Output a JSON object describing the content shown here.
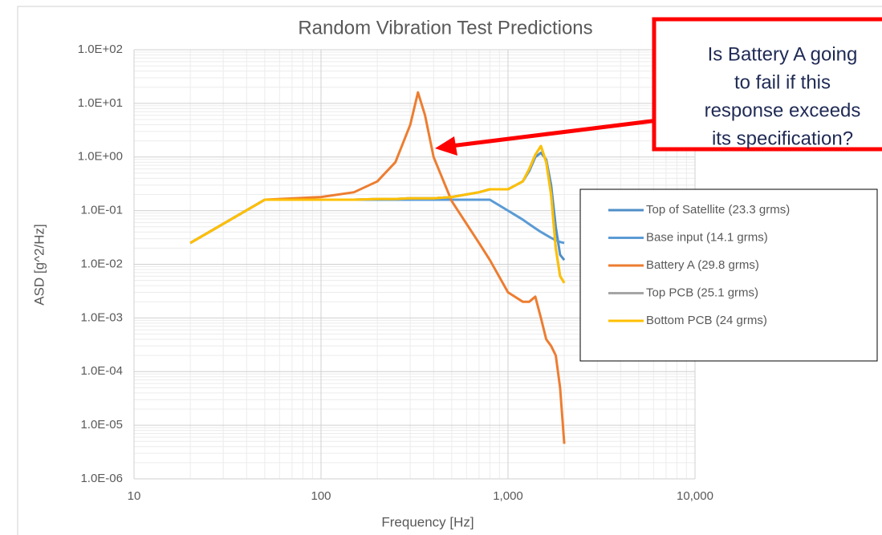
{
  "chart_data": {
    "type": "line",
    "title": "Random Vibration Test Predictions",
    "x_label": "Frequency [Hz]",
    "y_label": "ASD [g^2/Hz]",
    "annotation": [
      "Is Battery A going",
      "to fail if this",
      "response exceeds",
      "its specification?"
    ],
    "x": [
      20,
      50,
      100,
      150,
      200,
      250,
      300,
      330,
      360,
      400,
      500,
      700,
      800,
      1000,
      1200,
      1300,
      1400,
      1500,
      1600,
      1700,
      1800,
      1900,
      2000
    ],
    "series": [
      {
        "name": "Top of Satellite (23.3 grms)",
        "color": "#4f8fc9",
        "values": [
          0.025,
          0.16,
          0.16,
          0.16,
          0.165,
          0.165,
          0.17,
          0.17,
          0.17,
          0.17,
          0.18,
          0.22,
          0.25,
          0.25,
          0.35,
          0.55,
          1.0,
          1.2,
          0.9,
          0.3,
          0.05,
          0.015,
          0.012
        ]
      },
      {
        "name": "Base input (14.1 grms)",
        "color": "#5b9bd5",
        "values": [
          0.025,
          0.16,
          0.16,
          0.16,
          0.16,
          0.16,
          0.16,
          0.16,
          0.16,
          0.16,
          0.16,
          0.16,
          0.16,
          0.1,
          0.068,
          0.056,
          0.047,
          0.04,
          0.035,
          0.031,
          0.028,
          0.026,
          0.025
        ]
      },
      {
        "name": "Battery A (29.8 grms)",
        "color": "#ed7d31",
        "values": [
          0.025,
          0.16,
          0.18,
          0.22,
          0.35,
          0.8,
          4,
          16,
          6,
          1.0,
          0.15,
          0.025,
          0.012,
          0.003,
          0.002,
          0.002,
          0.0025,
          0.001,
          0.0004,
          0.0003,
          0.0002,
          5e-05,
          4.5e-06
        ]
      },
      {
        "name": "Top PCB (25.1 grms)",
        "color": "#a5a5a5",
        "values": [
          0.025,
          0.16,
          0.16,
          0.16,
          0.165,
          0.165,
          0.17,
          0.17,
          0.17,
          0.17,
          0.18,
          0.22,
          0.25,
          0.25,
          0.35,
          0.6,
          1.1,
          1.6,
          0.8,
          0.2,
          0.02,
          0.006,
          0.0045
        ]
      },
      {
        "name": "Bottom PCB (24 grms)",
        "color": "#ffc000",
        "values": [
          0.025,
          0.16,
          0.16,
          0.16,
          0.165,
          0.165,
          0.17,
          0.17,
          0.17,
          0.17,
          0.18,
          0.22,
          0.25,
          0.25,
          0.35,
          0.6,
          1.1,
          1.6,
          0.8,
          0.2,
          0.02,
          0.006,
          0.0045
        ]
      }
    ],
    "xlim": [
      10,
      10000
    ],
    "ylim": [
      1e-06,
      100
    ],
    "xticks": [
      10,
      100,
      {
        "value": 1000,
        "label": "1,000"
      },
      {
        "value": 10000,
        "label": "10,000"
      }
    ],
    "yticks": [
      {
        "value": 1e-06,
        "label": "1.0E-06"
      },
      {
        "value": 1e-05,
        "label": "1.0E-05"
      },
      {
        "value": 0.0001,
        "label": "1.0E-04"
      },
      {
        "value": 0.001,
        "label": "1.0E-03"
      },
      {
        "value": 0.01,
        "label": "1.0E-02"
      },
      {
        "value": 0.1,
        "label": "1.0E-01"
      },
      {
        "value": 1,
        "label": "1.0E+00"
      },
      {
        "value": 10,
        "label": "1.0E+01"
      },
      {
        "value": 100,
        "label": "1.0E+02"
      }
    ],
    "x_log": true,
    "y_log": true,
    "grid": true,
    "minor_grid": true,
    "legend": "right"
  }
}
